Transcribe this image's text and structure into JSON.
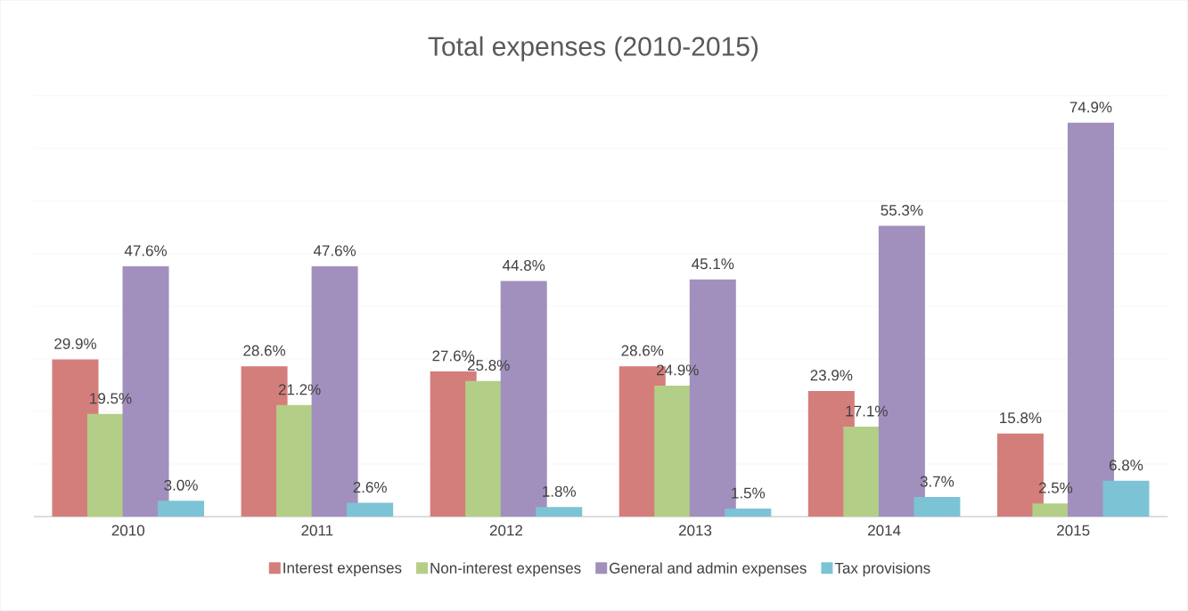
{
  "chart_data": {
    "type": "bar",
    "title": "Total expenses (2010-2015)",
    "categories": [
      "2010",
      "2011",
      "2012",
      "2013",
      "2014",
      "2015"
    ],
    "series": [
      {
        "name": "Interest expenses",
        "color": "#d47e7c",
        "values": [
          29.9,
          28.6,
          27.6,
          28.6,
          23.9,
          15.8
        ],
        "value_labels": [
          "29.9%",
          "28.6%",
          "27.6%",
          "28.6%",
          "23.9%",
          "15.8%"
        ]
      },
      {
        "name": "Non-interest expenses",
        "color": "#b3cf87",
        "values": [
          19.5,
          21.2,
          25.8,
          24.9,
          17.1,
          2.5
        ],
        "value_labels": [
          "19.5%",
          "21.2%",
          "25.8%",
          "24.9%",
          "17.1%",
          "2.5%"
        ]
      },
      {
        "name": "General and admin expenses",
        "color": "#a190bd",
        "values": [
          47.6,
          47.6,
          44.8,
          45.1,
          55.3,
          74.9
        ],
        "value_labels": [
          "47.6%",
          "47.6%",
          "44.8%",
          "45.1%",
          "55.3%",
          "74.9%"
        ]
      },
      {
        "name": "Tax provisions",
        "color": "#7cc3d5",
        "values": [
          3.0,
          2.6,
          1.8,
          1.5,
          3.7,
          6.8
        ],
        "value_labels": [
          "3.0%",
          "2.6%",
          "1.8%",
          "1.5%",
          "3.7%",
          "6.8%"
        ]
      }
    ],
    "ylim": [
      0,
      80
    ],
    "yticks": [
      {
        "value": 0,
        "label": null
      },
      {
        "value": 10,
        "label": null
      },
      {
        "value": 20,
        "label": null
      },
      {
        "value": 30,
        "label": null
      },
      {
        "value": 40,
        "label": null
      },
      {
        "value": 50,
        "label": null
      },
      {
        "value": 60,
        "label": null
      },
      {
        "value": 70,
        "label": null
      },
      {
        "value": 80,
        "label": null
      }
    ],
    "tick_labels": "x",
    "grid": "y",
    "legend": "bottom"
  }
}
